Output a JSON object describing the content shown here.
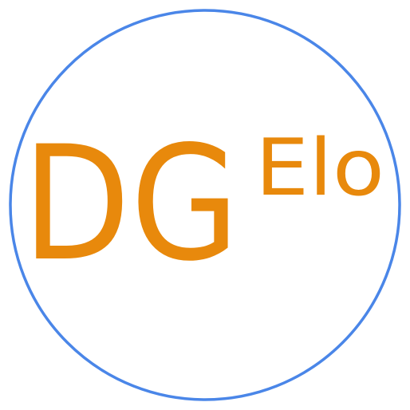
{
  "logo": {
    "main_text": "DG",
    "superscript_text": "Elo",
    "colors": {
      "ring": "#4A86E8",
      "text": "#E8890C",
      "background": "#FFFFFF"
    }
  }
}
